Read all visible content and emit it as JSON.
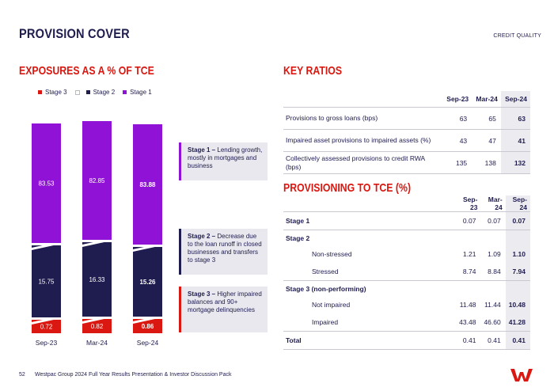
{
  "page": {
    "title": "PROVISION COVER",
    "section": "CREDIT QUALITY",
    "footer_page": "52",
    "footer_text": "Westpac Group 2024 Full Year Results Presentation & Investor Discussion Pack",
    "logo_icon": "westpac-w-logo"
  },
  "chart_title": "EXPOSURES AS A % OF TCE",
  "chart_data": {
    "type": "bar",
    "stacked": true,
    "title": "EXPOSURES AS A % OF TCE",
    "categories": [
      "Sep-23",
      "Mar-24",
      "Sep-24"
    ],
    "series": [
      {
        "name": "Stage 3",
        "color": "#da1710",
        "values": [
          0.72,
          0.82,
          0.86
        ]
      },
      {
        "name": "Stage 2",
        "color": "#1f1c4f",
        "values": [
          15.75,
          16.33,
          15.26
        ]
      },
      {
        "name": "Stage 1",
        "color": "#9012d6",
        "values": [
          83.53,
          82.85,
          83.88
        ]
      }
    ],
    "legend": [
      "Stage 3",
      "Stage 2",
      "Stage 1"
    ],
    "highlight_category": "Sep-24",
    "axis_break": true
  },
  "callouts": [
    {
      "bold": "Stage 1 –",
      "text": " Lending growth, mostly in mortgages and business",
      "color": "#9012d6"
    },
    {
      "bold": "Stage 2 –",
      "text": " Decrease due to the loan runoff in closed businesses and transfers to stage 3",
      "color": "#1f1c4f"
    },
    {
      "bold": "Stage 3 –",
      "text": " Higher impaired balances and 90+ mortgage delinquencies",
      "color": "#da1710"
    }
  ],
  "key_ratios": {
    "title": "KEY RATIOS",
    "columns": [
      "Sep-23",
      "Mar-24",
      "Sep-24"
    ],
    "rows": [
      {
        "label": "Provisions to gross loans (bps)",
        "values": [
          "63",
          "65",
          "63"
        ]
      },
      {
        "label": "Impaired asset provisions to impaired assets (%)",
        "values": [
          "43",
          "47",
          "41"
        ]
      },
      {
        "label": "Collectively assessed provisions to credit RWA (bps)",
        "values": [
          "135",
          "138",
          "132"
        ]
      }
    ]
  },
  "provisioning": {
    "title": "PROVISIONING TO TCE (%)",
    "columns": [
      "Sep-23",
      "Mar-24",
      "Sep-24"
    ],
    "rows": [
      {
        "label": "Stage 1",
        "values": [
          "0.07",
          "0.07",
          "0.07"
        ],
        "kind": "group-val"
      },
      {
        "label": "Stage 2",
        "values": [
          "",
          "",
          ""
        ],
        "kind": "group"
      },
      {
        "label": "Non-stressed",
        "values": [
          "1.21",
          "1.09",
          "1.10"
        ],
        "kind": "sub"
      },
      {
        "label": "Stressed",
        "values": [
          "8.74",
          "8.84",
          "7.94"
        ],
        "kind": "sub"
      },
      {
        "label": "Stage 3 (non-performing)",
        "values": [
          "",
          "",
          ""
        ],
        "kind": "group"
      },
      {
        "label": "Not impaired",
        "values": [
          "11.48",
          "11.44",
          "10.48"
        ],
        "kind": "sub"
      },
      {
        "label": "Impaired",
        "values": [
          "43.48",
          "46.60",
          "41.28"
        ],
        "kind": "sub"
      },
      {
        "label": "Total",
        "values": [
          "0.41",
          "0.41",
          "0.41"
        ],
        "kind": "total"
      }
    ]
  }
}
